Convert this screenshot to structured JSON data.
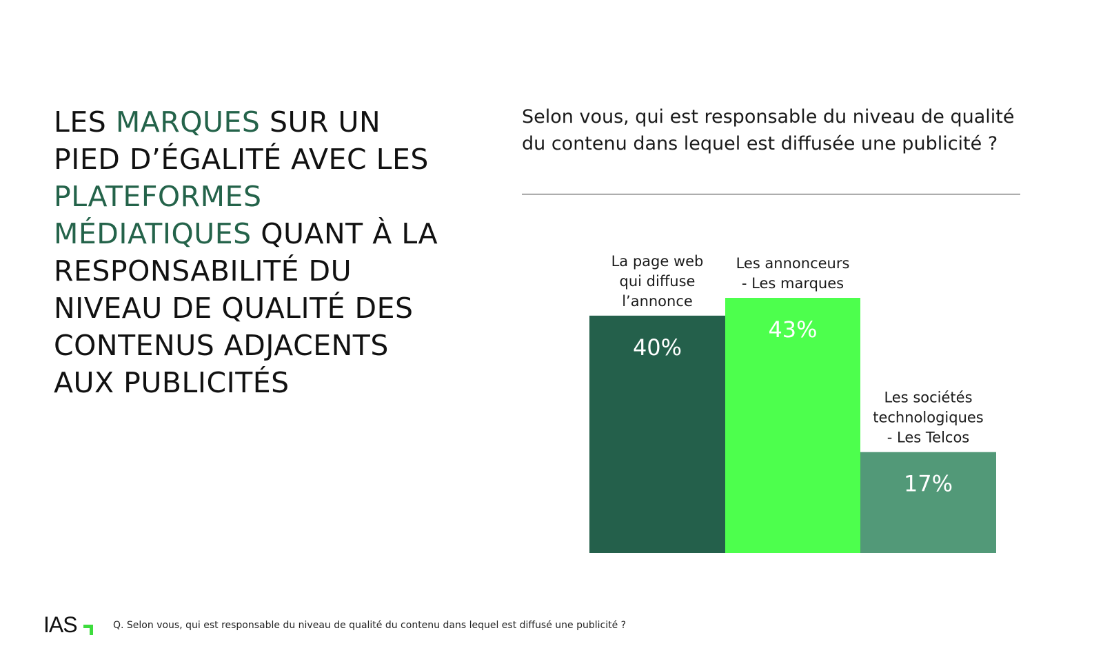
{
  "headline": {
    "seg1": "LES ",
    "seg2": "MARQUES",
    "seg3": " SUR UN PIED D’ÉGALITÉ AVEC LES ",
    "seg4": "PLATEFORMES MÉDIATIQUES",
    "seg5": " QUANT À LA RESPONSABILITÉ DU NIVEAU DE QUALITÉ DES CONTENUS ADJACENTS AUX PUBLICITÉS"
  },
  "question": {
    "line1": "Selon vous, qui est responsable du niveau de qualité",
    "line2": "du contenu dans lequel est diffusée une publicité ?"
  },
  "colors": {
    "text": "#111111",
    "highlight": "#24634a",
    "bar_dark": "#24604b",
    "bar_bright": "#4dff4d",
    "bar_mid": "#529978",
    "bar_label": "#ffffff",
    "logo_accent": "#3ddc3d"
  },
  "chart_data": {
    "type": "bar",
    "categories": [
      [
        "La page web",
        "qui diffuse",
        "l’annonce"
      ],
      [
        "Les annonceurs",
        " - Les marques"
      ],
      [
        "Les sociétés",
        "technologiques",
        "- Les Telcos"
      ]
    ],
    "values": [
      40,
      43,
      17
    ],
    "value_labels": [
      "40%",
      "43%",
      "17%"
    ],
    "ylim": [
      0,
      43
    ],
    "grid": false,
    "axes": false,
    "legend": "none"
  },
  "footer": {
    "logo_text": "IAS",
    "note": "Q. Selon vous, qui est responsable du niveau de qualité du contenu dans lequel est diffusé une publicité ?"
  }
}
